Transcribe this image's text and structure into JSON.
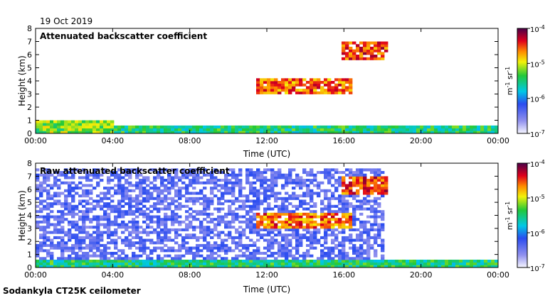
{
  "date": "19 Oct 2019",
  "footer": "Sodankyla CT25K ceilometer",
  "chart_data": [
    {
      "type": "heatmap",
      "title": "Attenuated backscatter coefficient",
      "xlabel": "Time (UTC)",
      "ylabel": "Height (km)",
      "xlim": [
        0,
        24
      ],
      "ylim": [
        0,
        8
      ],
      "x_ticks": [
        "00:00",
        "04:00",
        "08:00",
        "12:00",
        "16:00",
        "20:00",
        "00:00"
      ],
      "y_ticks": [
        "0",
        "1",
        "2",
        "3",
        "4",
        "5",
        "6",
        "7",
        "8"
      ],
      "colorbar": {
        "label": "m-1 sr-1",
        "scale": "log",
        "min_exp": -7,
        "max_exp": -4,
        "tick_labels": [
          "10-7",
          "10-6",
          "10-5",
          "10-4"
        ]
      },
      "features": [
        {
          "name": "boundary layer aerosol",
          "t_start": 0,
          "t_end": 24,
          "h_top": 0.5,
          "intensity": -5.5
        },
        {
          "name": "early morning cloud layer",
          "t_start": 0,
          "t_end": 4,
          "h_top": 1.0,
          "intensity": -5.2
        },
        {
          "name": "midlevel cloud",
          "t_start": 11.5,
          "t_end": 16.5,
          "h_base": 3.0,
          "h_top": 4.2,
          "intensity": -4.6
        },
        {
          "name": "high cloud",
          "t_start": 15.8,
          "t_end": 18.3,
          "h_base": 5.6,
          "h_top": 7.0,
          "intensity": -4.5
        }
      ]
    },
    {
      "type": "heatmap",
      "title": "Raw attenuated backscatter coefficient",
      "xlabel": "Time (UTC)",
      "ylabel": "Height (km)",
      "xlim": [
        0,
        24
      ],
      "ylim": [
        0,
        8
      ],
      "x_ticks": [
        "00:00",
        "04:00",
        "08:00",
        "12:00",
        "16:00",
        "20:00",
        "00:00"
      ],
      "y_ticks": [
        "0",
        "1",
        "2",
        "3",
        "4",
        "5",
        "6",
        "7",
        "8"
      ],
      "colorbar": {
        "label": "m-1 sr-1",
        "scale": "log",
        "min_exp": -7,
        "max_exp": -4,
        "tick_labels": [
          "10-7",
          "10-6",
          "10-5",
          "10-4"
        ]
      },
      "features": [
        {
          "name": "noise field",
          "t_start": 0,
          "t_end": 18,
          "h_top": 7.5,
          "intensity": -6.4
        },
        {
          "name": "boundary layer aerosol",
          "t_start": 0,
          "t_end": 24,
          "h_top": 0.5,
          "intensity": -5.5
        },
        {
          "name": "midlevel cloud",
          "t_start": 11.5,
          "t_end": 16.5,
          "h_base": 3.0,
          "h_top": 4.2,
          "intensity": -4.6
        },
        {
          "name": "high cloud",
          "t_start": 15.8,
          "t_end": 18.3,
          "h_base": 5.6,
          "h_top": 7.0,
          "intensity": -4.5
        }
      ]
    }
  ]
}
